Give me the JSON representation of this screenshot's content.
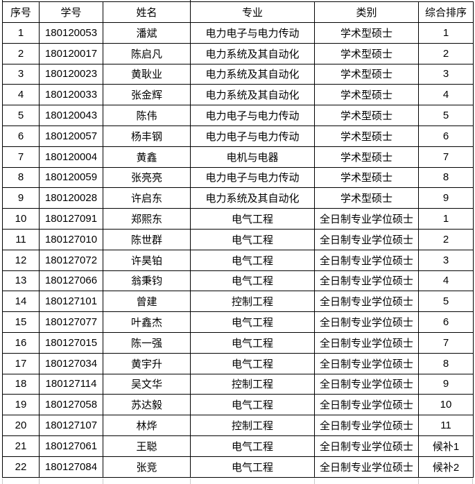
{
  "table": {
    "columns": [
      "序号",
      "学号",
      "姓名",
      "专业",
      "类别",
      "综合排序"
    ],
    "rows": [
      [
        "1",
        "180120053",
        "潘斌",
        "电力电子与电力传动",
        "学术型硕士",
        "1"
      ],
      [
        "2",
        "180120017",
        "陈启凡",
        "电力系统及其自动化",
        "学术型硕士",
        "2"
      ],
      [
        "3",
        "180120023",
        "黄耿业",
        "电力系统及其自动化",
        "学术型硕士",
        "3"
      ],
      [
        "4",
        "180120033",
        "张金辉",
        "电力系统及其自动化",
        "学术型硕士",
        "4"
      ],
      [
        "5",
        "180120043",
        "陈伟",
        "电力电子与电力传动",
        "学术型硕士",
        "5"
      ],
      [
        "6",
        "180120057",
        "杨丰钢",
        "电力电子与电力传动",
        "学术型硕士",
        "6"
      ],
      [
        "7",
        "180120004",
        "黄鑫",
        "电机与电器",
        "学术型硕士",
        "7"
      ],
      [
        "8",
        "180120059",
        "张亮亮",
        "电力电子与电力传动",
        "学术型硕士",
        "8"
      ],
      [
        "9",
        "180120028",
        "许启东",
        "电力系统及其自动化",
        "学术型硕士",
        "9"
      ],
      [
        "10",
        "180127091",
        "郑熙东",
        "电气工程",
        "全日制专业学位硕士",
        "1"
      ],
      [
        "11",
        "180127010",
        "陈世群",
        "电气工程",
        "全日制专业学位硕士",
        "2"
      ],
      [
        "12",
        "180127072",
        "许昊铂",
        "电气工程",
        "全日制专业学位硕士",
        "3"
      ],
      [
        "13",
        "180127066",
        "翁秉钧",
        "电气工程",
        "全日制专业学位硕士",
        "4"
      ],
      [
        "14",
        "180127101",
        "曾建",
        "控制工程",
        "全日制专业学位硕士",
        "5"
      ],
      [
        "15",
        "180127077",
        "叶鑫杰",
        "电气工程",
        "全日制专业学位硕士",
        "6"
      ],
      [
        "16",
        "180127015",
        "陈一强",
        "电气工程",
        "全日制专业学位硕士",
        "7"
      ],
      [
        "17",
        "180127034",
        "黄宇升",
        "电气工程",
        "全日制专业学位硕士",
        "8"
      ],
      [
        "18",
        "180127114",
        "吴文华",
        "控制工程",
        "全日制专业学位硕士",
        "9"
      ],
      [
        "19",
        "180127058",
        "苏达毅",
        "电气工程",
        "全日制专业学位硕士",
        "10"
      ],
      [
        "20",
        "180127107",
        "林烨",
        "控制工程",
        "全日制专业学位硕士",
        "11"
      ],
      [
        "21",
        "180127061",
        "王聪",
        "电气工程",
        "全日制专业学位硕士",
        "候补1"
      ],
      [
        "22",
        "180127084",
        "张竞",
        "电气工程",
        "全日制专业学位硕士",
        "候补2"
      ]
    ]
  },
  "colors": {
    "border": "#000000",
    "text": "#000000",
    "background": "#ffffff",
    "faint_gridline": "#c8c8c8"
  }
}
